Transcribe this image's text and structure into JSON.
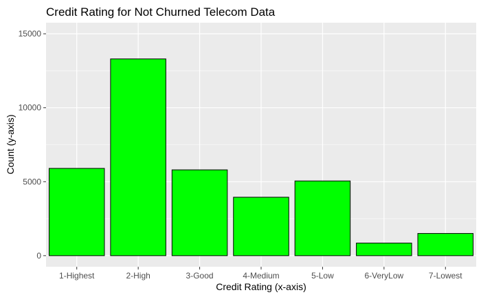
{
  "chart_data": {
    "type": "bar",
    "title": "Credit Rating for Not Churned Telecom Data",
    "xlabel": "Credit Rating (x-axis)",
    "ylabel": "Count (y-axis)",
    "categories": [
      "1-Highest",
      "2-High",
      "3-Good",
      "4-Medium",
      "5-Low",
      "6-VeryLow",
      "7-Lowest"
    ],
    "values": [
      5900,
      13300,
      5800,
      3950,
      5050,
      850,
      1500
    ],
    "ylim": [
      -750,
      15750
    ],
    "yticks": [
      0,
      5000,
      10000,
      15000
    ],
    "grid": true,
    "bar_fill": "#00ff00",
    "bar_stroke": "#000000",
    "panel_background": "#ebebeb",
    "grid_color": "#ffffff"
  }
}
